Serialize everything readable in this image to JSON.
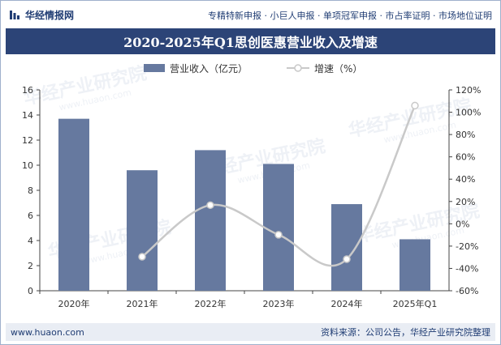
{
  "brand": {
    "name": "华经情报网"
  },
  "header": {
    "tagline": "专精特新申报 · 小巨人申报 · 单项冠军申报 · 市占率证明 · 市场地位证明"
  },
  "footer": {
    "site": "www.huaon.com",
    "source": "资料来源：公司公告，华经产业研究院整理"
  },
  "watermark": {
    "text": "华经产业研究院",
    "sub": "www.huaon.com"
  },
  "colors": {
    "bar": "#66799f",
    "line": "#c9c9c9",
    "title_bg": "#2c4477"
  },
  "chart_data": {
    "type": "bar",
    "title": "2020-2025年Q1思创医惠营业收入及增速",
    "categories": [
      "2020年",
      "2021年",
      "2022年",
      "2023年",
      "2024年",
      "2025年Q1"
    ],
    "series": [
      {
        "name": "营业收入（亿元）",
        "type": "bar",
        "axis": "left",
        "values": [
          13.7,
          9.6,
          11.2,
          10.1,
          6.9,
          4.1
        ]
      },
      {
        "name": "增速（%）",
        "type": "line",
        "axis": "right",
        "values": [
          null,
          -29.5,
          16.7,
          -9.8,
          -31.7,
          105.9
        ]
      }
    ],
    "ylim_left": [
      0,
      16
    ],
    "yticks_left": [
      "0",
      "2",
      "4",
      "6",
      "8",
      "10",
      "12",
      "14",
      "16"
    ],
    "ylim_right": [
      -60,
      120
    ],
    "yticks_right": [
      "-60%",
      "-40%",
      "-20%",
      "0%",
      "20%",
      "40%",
      "60%",
      "80%",
      "100%",
      "120%"
    ],
    "legend_position": "top",
    "grid": false
  }
}
